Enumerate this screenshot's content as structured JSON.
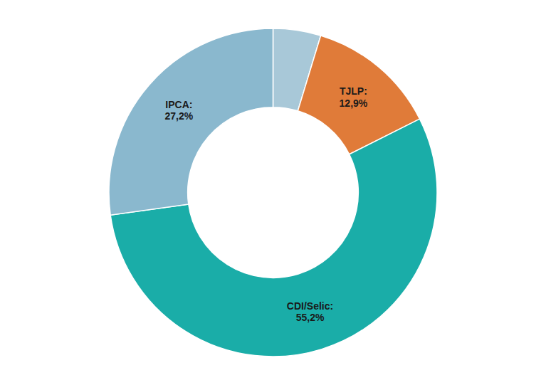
{
  "chart_data": {
    "type": "donut",
    "categories": [
      null,
      "TJLP:\n12,9%",
      "CDI/Selic:\n55,2%",
      "IPCA:\n27,2%"
    ],
    "values": [
      4.7,
      12.9,
      55.2,
      27.2
    ],
    "colors": [
      "#a8c8d8",
      "#e07b39",
      "#1aada8",
      "#8ab8ce"
    ]
  }
}
